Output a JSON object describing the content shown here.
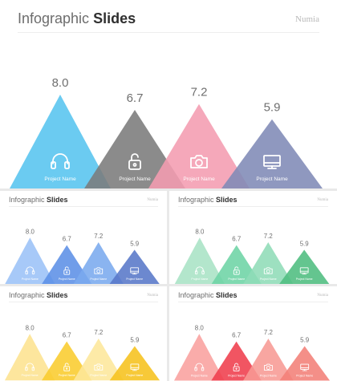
{
  "deck_title_light": "Infographic",
  "deck_title_bold": "Slides",
  "brand": "Numia",
  "chart_data": {
    "type": "bar",
    "categories": [
      "Project Name",
      "Project Name",
      "Project Name",
      "Project Name"
    ],
    "values": [
      8.0,
      6.7,
      7.2,
      5.9
    ],
    "value_labels": [
      "8.0",
      "6.7",
      "7.2",
      "5.9"
    ],
    "icons": [
      "headphones-icon",
      "unlock-icon",
      "camera-icon",
      "monitor-icon"
    ],
    "ylim": [
      0,
      8.0
    ]
  },
  "slides": [
    {
      "name": "slide-main-gray",
      "colors": [
        "#57c4ef",
        "#7b7b7b",
        "#f49cb1",
        "#7f8ab6"
      ]
    },
    {
      "name": "slide-blue",
      "colors": [
        "#9bc2f7",
        "#5c8fe6",
        "#7aaaee",
        "#5878c8"
      ]
    },
    {
      "name": "slide-green",
      "colors": [
        "#a8e3c5",
        "#6dd4a5",
        "#8fdcb7",
        "#4ebd80"
      ]
    },
    {
      "name": "slide-yellow",
      "colors": [
        "#fde390",
        "#f9cc2e",
        "#fde79b",
        "#f6c21c"
      ]
    },
    {
      "name": "slide-red",
      "colors": [
        "#f9a09e",
        "#ef3e4c",
        "#f79a94",
        "#f37f78"
      ]
    }
  ]
}
